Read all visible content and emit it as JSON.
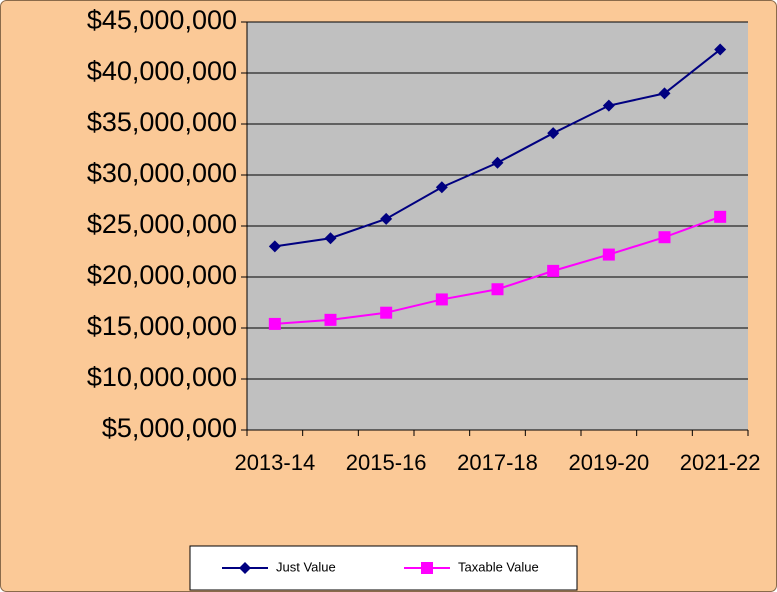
{
  "chart_data": {
    "type": "line",
    "categories": [
      "2013-14",
      null,
      "2015-16",
      null,
      "2017-18",
      null,
      "2019-20",
      null,
      "2021-22"
    ],
    "series": [
      {
        "name": "Just Value",
        "color": "#000080",
        "marker": "diamond",
        "values": [
          23000000,
          23800000,
          25700000,
          28800000,
          31200000,
          34100000,
          36800000,
          38000000,
          42300000
        ]
      },
      {
        "name": "Taxable Value",
        "color": "#ff00ff",
        "marker": "square",
        "values": [
          15400000,
          15800000,
          16500000,
          17800000,
          18800000,
          20600000,
          22200000,
          23900000,
          25900000
        ]
      }
    ],
    "ylim": [
      5000000,
      45000000
    ],
    "yticks": [
      {
        "value": 5000000,
        "label": "$5,000,000"
      },
      {
        "value": 10000000,
        "label": "$10,000,000"
      },
      {
        "value": 15000000,
        "label": "$15,000,000"
      },
      {
        "value": 20000000,
        "label": "$20,000,000"
      },
      {
        "value": 25000000,
        "label": "$25,000,000"
      },
      {
        "value": 30000000,
        "label": "$30,000,000"
      },
      {
        "value": 35000000,
        "label": "$35,000,000"
      },
      {
        "value": 40000000,
        "label": "$40,000,000"
      },
      {
        "value": 45000000,
        "label": "$45,000,000"
      }
    ],
    "grid": true,
    "legend": "bottom"
  }
}
